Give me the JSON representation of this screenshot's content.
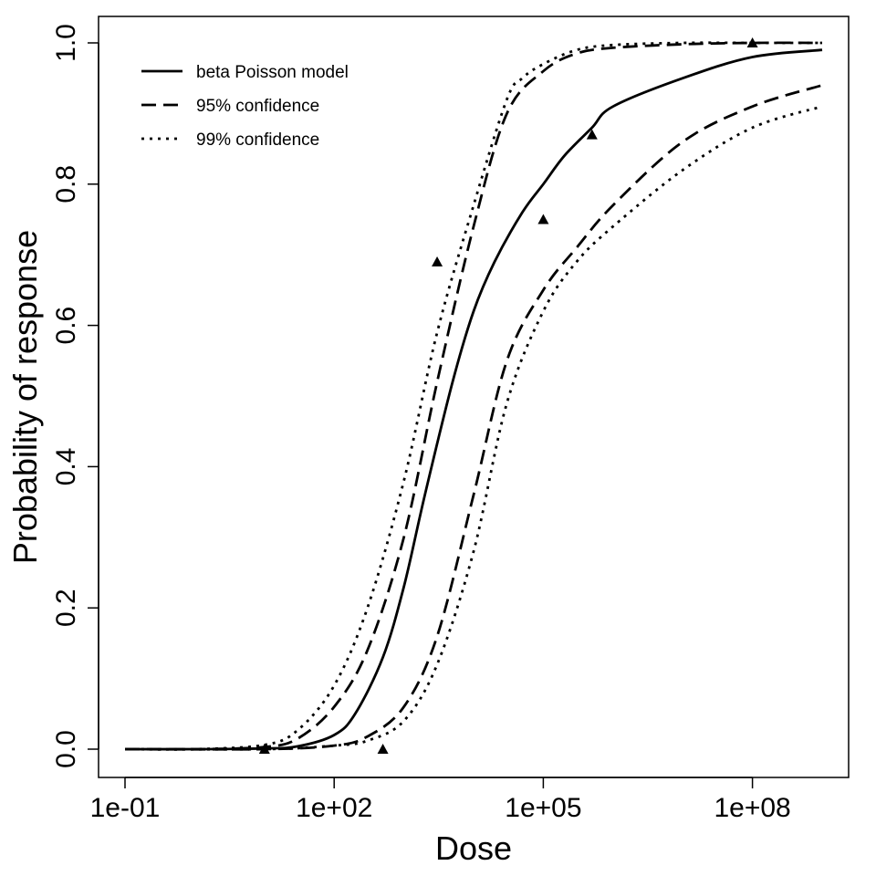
{
  "chart_data": {
    "type": "line",
    "title": "",
    "xlabel": "Dose",
    "ylabel": "Probability of response",
    "x_scale": "log10",
    "xlim": [
      0.05,
      3000000000
    ],
    "ylim": [
      -0.04,
      1.04
    ],
    "x_ticks": [
      {
        "value": 0.1,
        "label": "1e-01"
      },
      {
        "value": 100,
        "label": "1e+02"
      },
      {
        "value": 100000,
        "label": "1e+05"
      },
      {
        "value": 100000000,
        "label": "1e+08"
      }
    ],
    "y_ticks": [
      {
        "value": 0.0,
        "label": "0.0"
      },
      {
        "value": 0.2,
        "label": "0.2"
      },
      {
        "value": 0.4,
        "label": "0.4"
      },
      {
        "value": 0.6,
        "label": "0.6"
      },
      {
        "value": 0.8,
        "label": "0.8"
      },
      {
        "value": 1.0,
        "label": "1.0"
      }
    ],
    "grid": false,
    "legend_position": "top-left",
    "series": [
      {
        "name": "beta Poisson model",
        "style": "solid",
        "x": [
          0.1,
          1,
          10,
          30,
          100,
          200,
          500,
          1000,
          2000,
          5000,
          10000,
          20000,
          50000,
          100000,
          200000,
          500000,
          1000000,
          10000000,
          100000000,
          1000000000
        ],
        "y": [
          0.0,
          0.0,
          0.001,
          0.004,
          0.02,
          0.05,
          0.13,
          0.23,
          0.36,
          0.52,
          0.62,
          0.69,
          0.76,
          0.8,
          0.84,
          0.88,
          0.91,
          0.95,
          0.98,
          0.99
        ]
      },
      {
        "name": "95% confidence",
        "style": "dashed",
        "x": [
          0.1,
          1,
          10,
          30,
          100,
          300,
          1000,
          3000,
          10000,
          30000,
          100000,
          300000,
          1000000,
          10000000,
          100000000,
          1000000000
        ],
        "y": [
          0.0,
          0.0,
          0.003,
          0.015,
          0.06,
          0.14,
          0.3,
          0.52,
          0.74,
          0.9,
          0.96,
          0.985,
          0.993,
          0.998,
          1.0,
          1.0
        ]
      },
      {
        "name": "95% confidence",
        "style": "dashed",
        "x": [
          0.1,
          10,
          100,
          300,
          1000,
          3000,
          10000,
          30000,
          100000,
          300000,
          1000000,
          10000000,
          100000000,
          1000000000
        ],
        "y": [
          0.0,
          0.0,
          0.005,
          0.018,
          0.06,
          0.16,
          0.36,
          0.55,
          0.65,
          0.71,
          0.77,
          0.86,
          0.91,
          0.94
        ]
      },
      {
        "name": "99% confidence",
        "style": "dotted",
        "x": [
          0.1,
          1,
          10,
          30,
          100,
          300,
          1000,
          3000,
          10000,
          30000,
          50000,
          100000,
          300000,
          1000000,
          10000000,
          100000000,
          1000000000
        ],
        "y": [
          0.0,
          0.0,
          0.006,
          0.027,
          0.09,
          0.2,
          0.38,
          0.59,
          0.77,
          0.92,
          0.95,
          0.97,
          0.99,
          0.997,
          1.0,
          1.0,
          1.0
        ]
      },
      {
        "name": "99% confidence",
        "style": "dotted",
        "x": [
          0.1,
          10,
          100,
          300,
          1000,
          3000,
          10000,
          30000,
          100000,
          300000,
          1000000,
          10000000,
          100000000,
          1000000000
        ],
        "y": [
          0.0,
          0.0,
          0.005,
          0.012,
          0.04,
          0.12,
          0.28,
          0.49,
          0.62,
          0.69,
          0.74,
          0.82,
          0.88,
          0.91
        ]
      }
    ],
    "points": {
      "marker": "triangle",
      "x": [
        10,
        500,
        3000,
        100000,
        500000,
        100000000
      ],
      "y": [
        0.0,
        0.0,
        0.69,
        0.75,
        0.87,
        1.0
      ]
    }
  },
  "legend": {
    "items": [
      {
        "label": "beta Poisson model",
        "style": "solid"
      },
      {
        "label": "95% confidence",
        "style": "dashed"
      },
      {
        "label": "99% confidence",
        "style": "dotted"
      }
    ]
  },
  "colors": {
    "ink": "#000000",
    "background": "#ffffff"
  }
}
